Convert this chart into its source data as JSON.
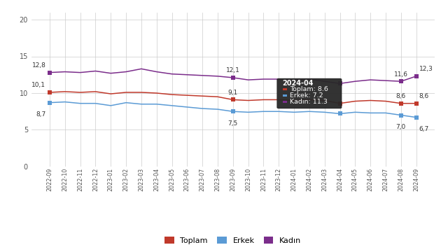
{
  "x_labels": [
    "2022-09",
    "2022-10",
    "2022-11",
    "2022-12",
    "2023-01",
    "2023-02",
    "2023-03",
    "2023-04",
    "2023-05",
    "2023-06",
    "2023-07",
    "2023-08",
    "2023-09",
    "2023-10",
    "2023-11",
    "2023-12",
    "2024-01",
    "2024-02",
    "2024-03",
    "2024-04",
    "2024-05",
    "2024-06",
    "2024-07",
    "2024-08",
    "2024-09"
  ],
  "toplam": [
    10.1,
    10.2,
    10.1,
    10.2,
    9.9,
    10.1,
    10.1,
    10.0,
    9.8,
    9.7,
    9.6,
    9.5,
    9.1,
    9.0,
    9.1,
    9.1,
    9.0,
    9.1,
    9.0,
    8.6,
    8.9,
    9.0,
    8.9,
    8.6,
    8.6
  ],
  "erkek": [
    8.7,
    8.8,
    8.6,
    8.6,
    8.3,
    8.7,
    8.5,
    8.5,
    8.3,
    8.1,
    7.9,
    7.8,
    7.5,
    7.4,
    7.5,
    7.5,
    7.4,
    7.5,
    7.4,
    7.2,
    7.4,
    7.3,
    7.3,
    7.0,
    6.7
  ],
  "kadin": [
    12.8,
    12.9,
    12.8,
    13.0,
    12.7,
    12.9,
    13.3,
    12.9,
    12.6,
    12.5,
    12.4,
    12.3,
    12.1,
    11.8,
    11.9,
    11.9,
    11.8,
    11.9,
    11.6,
    11.3,
    11.6,
    11.8,
    11.7,
    11.6,
    12.3
  ],
  "toplam_color": "#c0392b",
  "erkek_color": "#5b9bd5",
  "kadin_color": "#7b2d8b",
  "highlight_idx": 19,
  "highlight_label": "2024-04",
  "highlight_toplam": "8.6",
  "highlight_erkek": "7.2",
  "highlight_kadin": "11.3",
  "ylim": [
    0,
    21
  ],
  "yticks": [
    0,
    5,
    10,
    15,
    20
  ],
  "bg_color": "#ffffff",
  "grid_color": "#cccccc",
  "legend_labels": [
    "Toplam",
    "Erkek",
    "Kadın"
  ]
}
